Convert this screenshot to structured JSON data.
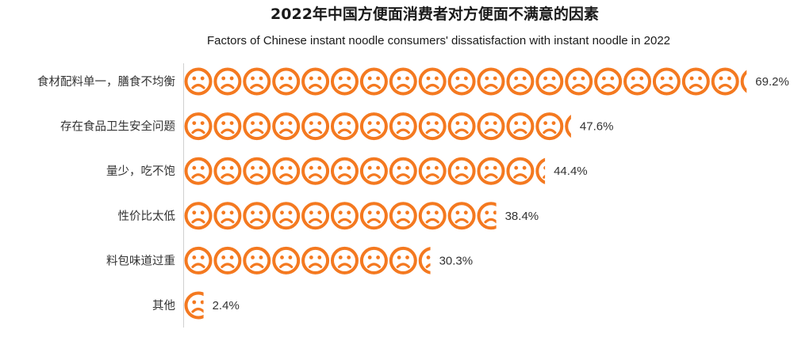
{
  "chart_data": {
    "type": "bar",
    "orientation": "horizontal",
    "title": "2022年中国方便面消费者对方便面不满意的因素",
    "subtitle": "Factors of Chinese instant noodle consumers' dissatisfaction with instant noodle in 2022",
    "categories": [
      "食材配料单一，膳食不均衡",
      "存在食品卫生安全问题",
      "量少，吃不饱",
      "性价比太低",
      "料包味道过重",
      "其他"
    ],
    "values": [
      69.2,
      47.6,
      44.4,
      38.4,
      30.3,
      2.4
    ],
    "value_labels": [
      "69.2%",
      "47.6%",
      "44.4%",
      "38.4%",
      "30.3%",
      "2.4%"
    ],
    "unit": "%",
    "percent_per_icon": 3.6,
    "marker": "sad-face-icon",
    "color": "#F47920",
    "xlabel": "",
    "ylabel": ""
  }
}
